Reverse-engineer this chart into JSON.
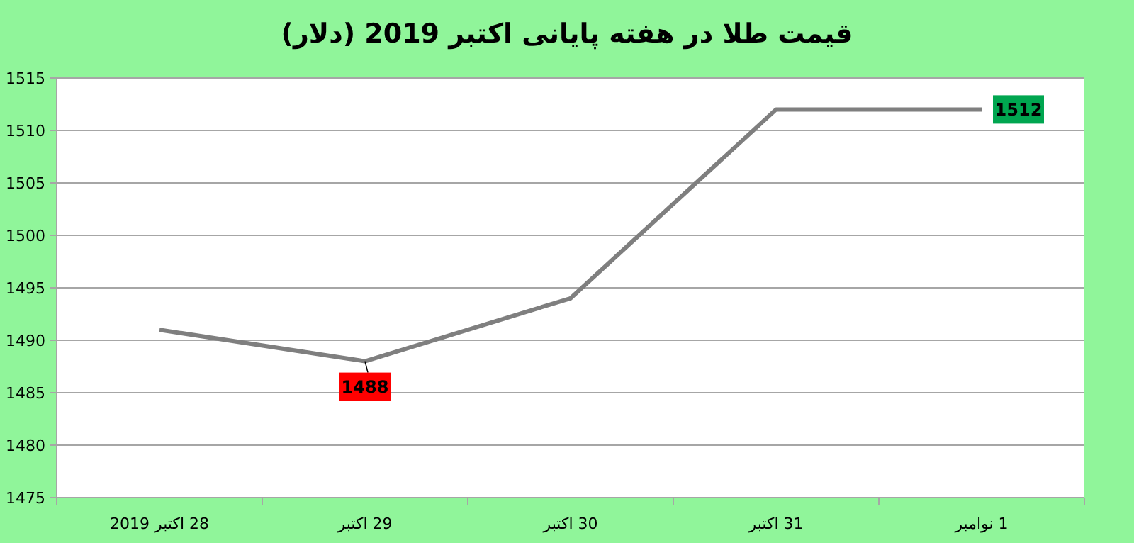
{
  "chart_data": {
    "type": "line",
    "title": "قیمت طلا در هفته پایانی اکتبر 2019 (دلار)",
    "categories": [
      "28 اکتبر 2019",
      "29 اکتبر",
      "30 اکتبر",
      "31 اکتبر",
      "1 نوامبر"
    ],
    "series": [
      {
        "color": "#7f7f7f",
        "values": [
          1491,
          1488,
          1494,
          1512,
          1512
        ]
      }
    ],
    "ylim": [
      1475,
      1515
    ],
    "yticks": [
      1475,
      1480,
      1485,
      1490,
      1495,
      1500,
      1505,
      1510,
      1515
    ],
    "grid": "y",
    "marker": "none",
    "line_style": "solid",
    "annotations": [
      {
        "text": "1488",
        "x": "29 اکتبر",
        "y": 1488
      },
      {
        "text": "1512",
        "x": "1 نوامبر",
        "y": 1512
      }
    ]
  }
}
